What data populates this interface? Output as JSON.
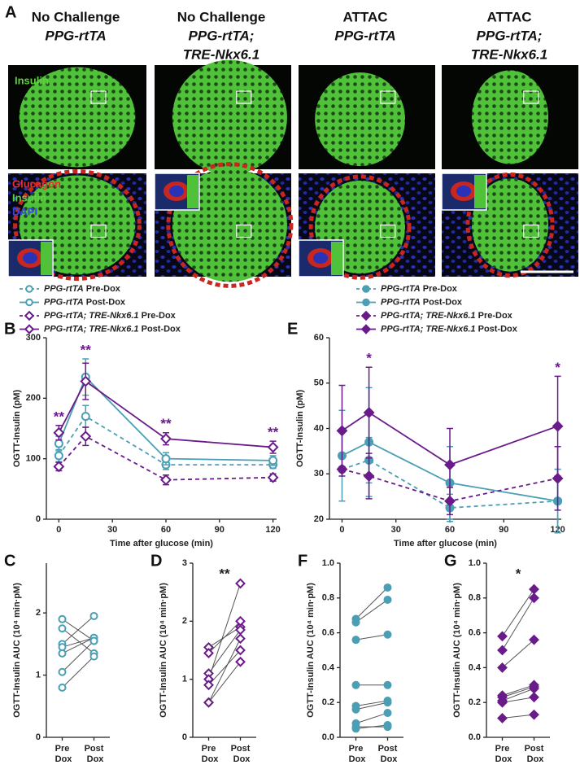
{
  "panel_a": {
    "panel": "A",
    "headings": [
      [
        "No Challenge",
        "PPG-rtTA"
      ],
      [
        "No Challenge",
        "PPG-rtTA;",
        "TRE-Nkx6.1"
      ],
      [
        "ATTAC",
        "PPG-rtTA"
      ],
      [
        "ATTAC",
        "PPG-rtTA;",
        "TRE-Nkx6.1"
      ]
    ],
    "stain_top": "Insulin",
    "stain_bottom": [
      "Glucagon",
      "Insulin",
      "DAPI"
    ]
  },
  "chart_data": [
    {
      "type": "line",
      "panel": "B",
      "xlabel": "Time after glucose (min)",
      "ylabel": "OGTT-Insulin (pM)",
      "x": [
        0,
        15,
        60,
        120
      ],
      "xlim": [
        -7,
        122
      ],
      "xticks": [
        0,
        30,
        60,
        90,
        120
      ],
      "ylim": [
        0,
        300
      ],
      "yticks": [
        0,
        100,
        200,
        300
      ],
      "legend": "top-left",
      "series": [
        {
          "name": "PPG-rtTA Pre-Dox",
          "color": "#4a9fb5",
          "dash": true,
          "marker": "circle",
          "filled": false,
          "values": [
            105,
            170,
            90,
            90
          ],
          "errors": [
            10,
            18,
            8,
            6
          ]
        },
        {
          "name": "PPG-rtTA Post-Dox",
          "color": "#4a9fb5",
          "dash": false,
          "marker": "circle",
          "filled": false,
          "values": [
            125,
            235,
            100,
            97
          ],
          "errors": [
            12,
            30,
            10,
            8
          ]
        },
        {
          "name": "PPG-rtTA; TRE-Nkx6.1 Pre-Dox",
          "color": "#6a1b8a",
          "dash": true,
          "marker": "diamond",
          "filled": false,
          "values": [
            87,
            137,
            65,
            69
          ],
          "errors": [
            7,
            15,
            8,
            6
          ]
        },
        {
          "name": "PPG-rtTA; TRE-Nkx6.1 Post-Dox",
          "color": "#6a1b8a",
          "dash": false,
          "marker": "diamond",
          "filled": false,
          "values": [
            143,
            228,
            133,
            119
          ],
          "errors": [
            12,
            30,
            10,
            10
          ]
        }
      ],
      "annotation_color": "#6a1b8a",
      "annotations": [
        {
          "text": "**",
          "x": 0
        },
        {
          "text": "**",
          "x": 15
        },
        {
          "text": "**",
          "x": 60
        },
        {
          "text": "**",
          "x": 120
        }
      ]
    },
    {
      "type": "line",
      "panel": "E",
      "xlabel": "Time after glucose (min)",
      "ylabel": "OGTT-Insulin (pM)",
      "x": [
        0,
        15,
        60,
        120
      ],
      "xlim": [
        -7,
        122
      ],
      "xticks": [
        0,
        30,
        60,
        90,
        120
      ],
      "ylim": [
        20,
        60
      ],
      "yticks": [
        20,
        30,
        40,
        50,
        60
      ],
      "legend": "top-left",
      "series": [
        {
          "name": "PPG-rtTA Pre-Dox",
          "color": "#4a9fb5",
          "dash": true,
          "marker": "circle",
          "filled": true,
          "values": [
            31,
            33,
            22.5,
            24
          ],
          "errors": [
            0.5,
            5,
            3,
            7
          ]
        },
        {
          "name": "PPG-rtTA Post-Dox",
          "color": "#4a9fb5",
          "dash": false,
          "marker": "circle",
          "filled": true,
          "values": [
            34,
            37,
            28,
            24
          ],
          "errors": [
            10,
            12,
            8,
            7
          ]
        },
        {
          "name": "PPG-rtTA; TRE-Nkx6.1 Pre-Dox",
          "color": "#6a1b8a",
          "dash": true,
          "marker": "diamond",
          "filled": true,
          "values": [
            31,
            29.5,
            24,
            29
          ],
          "errors": [
            0.5,
            5,
            3,
            7
          ]
        },
        {
          "name": "PPG-rtTA; TRE-Nkx6.1 Post-Dox",
          "color": "#6a1b8a",
          "dash": false,
          "marker": "diamond",
          "filled": true,
          "values": [
            39.5,
            43.5,
            32,
            40.5
          ],
          "errors": [
            10,
            10,
            8,
            11
          ]
        }
      ],
      "annotation_color": "#6a1b8a",
      "annotations": [
        {
          "text": "*",
          "x": 15
        },
        {
          "text": "*",
          "x": 120
        }
      ]
    },
    {
      "type": "paired",
      "panel": "C",
      "ylabel": "OGTT-Insulin AUC (10⁴ min·pM)",
      "categories": [
        "Pre Dox",
        "Post Dox"
      ],
      "ylim": [
        0,
        2.8
      ],
      "yticks": [
        0,
        1,
        2
      ],
      "color": "#4a9fb5",
      "marker": "circle",
      "filled": false,
      "series": [
        {
          "values": [
            1.9,
            1.55
          ]
        },
        {
          "values": [
            1.75,
            1.35
          ]
        },
        {
          "values": [
            1.5,
            1.95
          ]
        },
        {
          "values": [
            1.45,
            1.6
          ]
        },
        {
          "values": [
            1.35,
            1.6
          ]
        },
        {
          "values": [
            1.05,
            1.55
          ]
        },
        {
          "values": [
            0.8,
            1.3
          ]
        }
      ]
    },
    {
      "type": "paired",
      "panel": "D",
      "ylabel": "OGTT-Insulin AUC (10⁴ min·pM)",
      "categories": [
        "Pre Dox",
        "Post Dox"
      ],
      "ylim": [
        0,
        3
      ],
      "yticks": [
        0,
        1,
        2,
        3
      ],
      "color": "#6a1b8a",
      "marker": "diamond",
      "filled": false,
      "annotation": "**",
      "series": [
        {
          "values": [
            1.55,
            1.9
          ]
        },
        {
          "values": [
            1.45,
            2.0
          ]
        },
        {
          "values": [
            1.1,
            1.85
          ]
        },
        {
          "values": [
            1.0,
            2.65
          ]
        },
        {
          "values": [
            0.9,
            1.5
          ]
        },
        {
          "values": [
            0.6,
            1.7
          ]
        },
        {
          "values": [
            0.6,
            1.3
          ]
        }
      ]
    },
    {
      "type": "paired",
      "panel": "F",
      "ylabel": "OGTT-Insulin AUC (10⁴ min·pM)",
      "categories": [
        "Pre Dox",
        "Post Dox"
      ],
      "ylim": [
        0,
        1
      ],
      "yticks": [
        {
          "value": 0,
          "label": "0.0"
        },
        0.2,
        0.4,
        0.6,
        0.8,
        {
          "value": 1,
          "label": "1.0"
        }
      ],
      "color": "#4a9fb5",
      "marker": "circle",
      "filled": true,
      "series": [
        {
          "values": [
            0.68,
            0.86
          ]
        },
        {
          "values": [
            0.66,
            0.79
          ]
        },
        {
          "values": [
            0.56,
            0.59
          ]
        },
        {
          "values": [
            0.3,
            0.3
          ]
        },
        {
          "values": [
            0.18,
            0.21
          ]
        },
        {
          "values": [
            0.16,
            0.2
          ]
        },
        {
          "values": [
            0.08,
            0.14
          ]
        },
        {
          "values": [
            0.05,
            0.07
          ]
        },
        {
          "values": [
            0.06,
            0.06
          ]
        }
      ]
    },
    {
      "type": "paired",
      "panel": "G",
      "ylabel": "OGTT-Insulin AUC (10⁴ min·pM)",
      "categories": [
        "Pre Dox",
        "Post Dox"
      ],
      "ylim": [
        0,
        1
      ],
      "yticks": [
        {
          "value": 0,
          "label": "0.0"
        },
        0.2,
        0.4,
        0.6,
        0.8,
        {
          "value": 1,
          "label": "1.0"
        }
      ],
      "color": "#6a1b8a",
      "marker": "diamond",
      "filled": true,
      "annotation": "*",
      "series": [
        {
          "values": [
            0.58,
            0.85
          ]
        },
        {
          "values": [
            0.5,
            0.8
          ]
        },
        {
          "values": [
            0.4,
            0.56
          ]
        },
        {
          "values": [
            0.24,
            0.3
          ]
        },
        {
          "values": [
            0.23,
            0.29
          ]
        },
        {
          "values": [
            0.21,
            0.28
          ]
        },
        {
          "values": [
            0.2,
            0.23
          ]
        },
        {
          "values": [
            0.11,
            0.13
          ]
        }
      ]
    }
  ]
}
